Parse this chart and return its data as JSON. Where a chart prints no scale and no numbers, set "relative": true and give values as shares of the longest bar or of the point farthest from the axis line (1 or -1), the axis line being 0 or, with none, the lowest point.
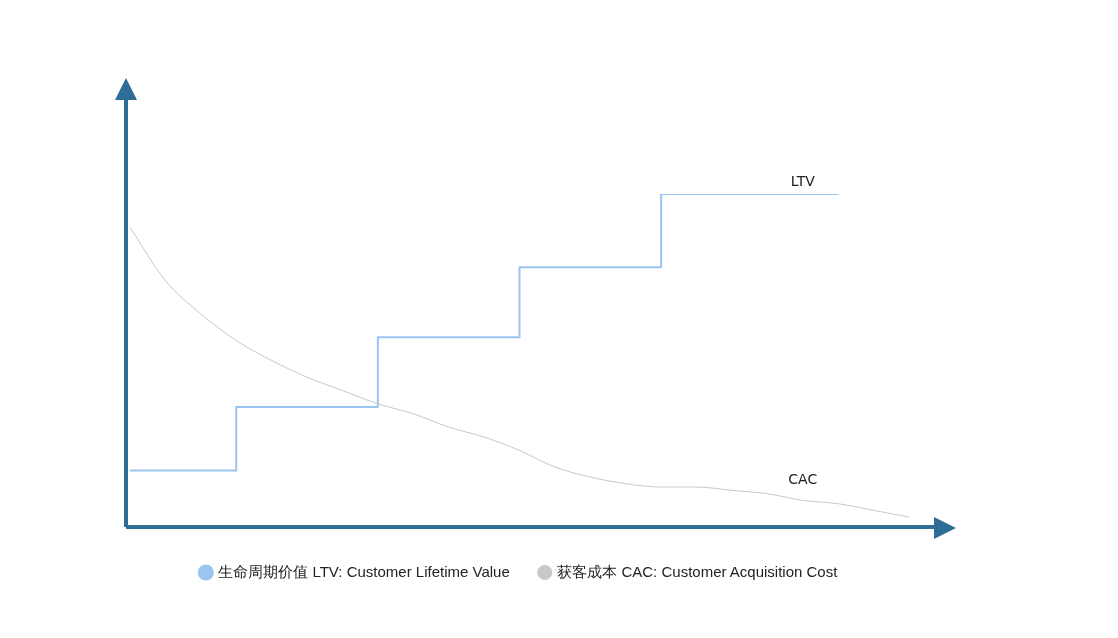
{
  "chart_data": {
    "type": "line",
    "relative": true,
    "categories": [
      null,
      null,
      null,
      null,
      null,
      null,
      null,
      null,
      null,
      null,
      null,
      null,
      null,
      null,
      null,
      null,
      null,
      null,
      null,
      null,
      null,
      null,
      null
    ],
    "series": [
      {
        "name": "生命周期价值 LTV: Customer Lifetime Value",
        "type": "step",
        "color": "#9cc4f0",
        "values": [
          0.17,
          0.17,
          0.17,
          0.17,
          0.36,
          0.36,
          0.36,
          0.36,
          0.57,
          0.57,
          0.57,
          0.57,
          0.78,
          0.78,
          0.78,
          0.78,
          1.0,
          1.0,
          1.0,
          1.0,
          1.0,
          null,
          null
        ]
      },
      {
        "name": "获客成本 CAC: Customer Acquisition Cost",
        "type": "line",
        "color": "#c8c8c8",
        "values": [
          0.9,
          0.74,
          0.64,
          0.56,
          0.5,
          0.45,
          0.41,
          0.37,
          0.34,
          0.3,
          0.27,
          0.23,
          0.18,
          0.15,
          0.13,
          0.12,
          0.12,
          0.11,
          0.1,
          0.08,
          0.07,
          0.05,
          0.03
        ]
      }
    ],
    "annotations": [
      "LTV",
      "CAC"
    ],
    "legend": "bottom",
    "grid": false,
    "marker": "none"
  }
}
